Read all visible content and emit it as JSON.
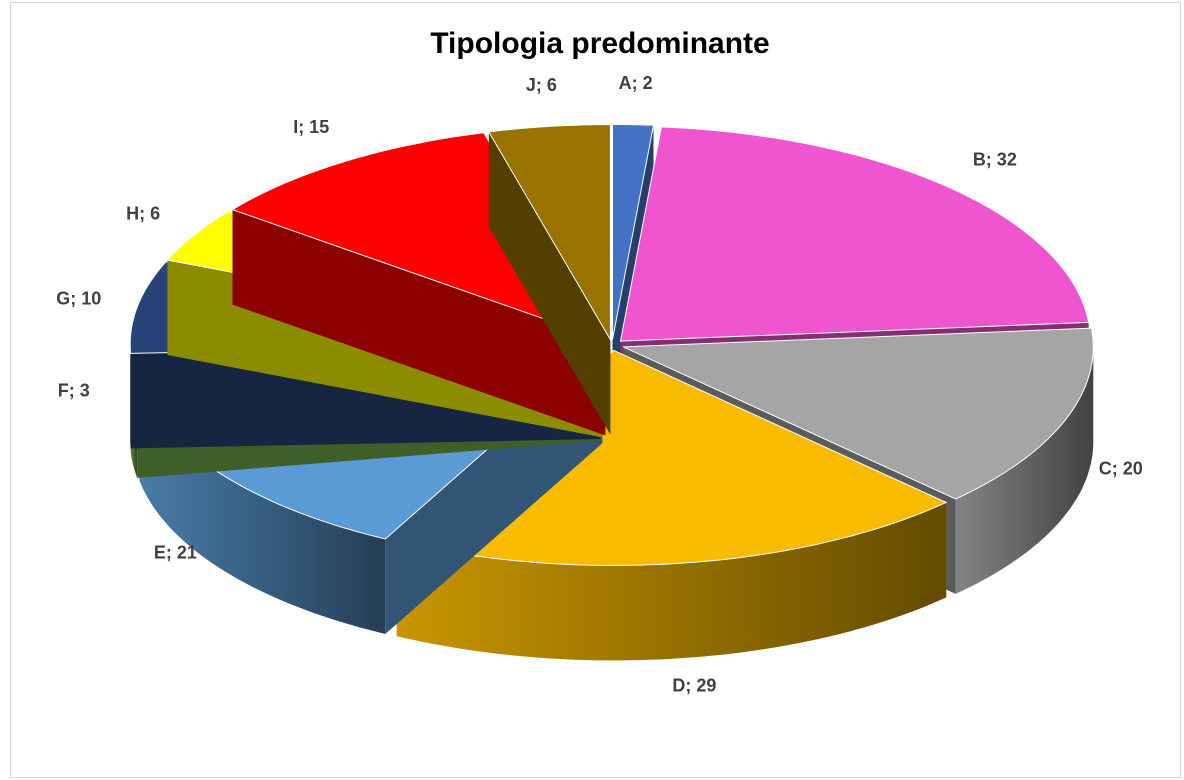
{
  "chart_data": {
    "type": "pie",
    "title": "Tipologia predominante",
    "categories": [
      "A",
      "B",
      "C",
      "D",
      "E",
      "F",
      "G",
      "H",
      "I",
      "J"
    ],
    "values": [
      2,
      32,
      20,
      29,
      21,
      3,
      10,
      6,
      15,
      6
    ],
    "value_labels": [
      "A; 2",
      "B; 32",
      "C; 20",
      "D; 29",
      "E; 21",
      "F; 3",
      "G; 10",
      "H; 6",
      "I; 15",
      "J; 6"
    ],
    "colors": [
      "#4472c4",
      "#f055d0",
      "#a5a5a5",
      "#f9bb00",
      "#5b9bd5",
      "#70ad47",
      "#264478",
      "#ffff00",
      "#ff0000",
      "#997300"
    ]
  }
}
